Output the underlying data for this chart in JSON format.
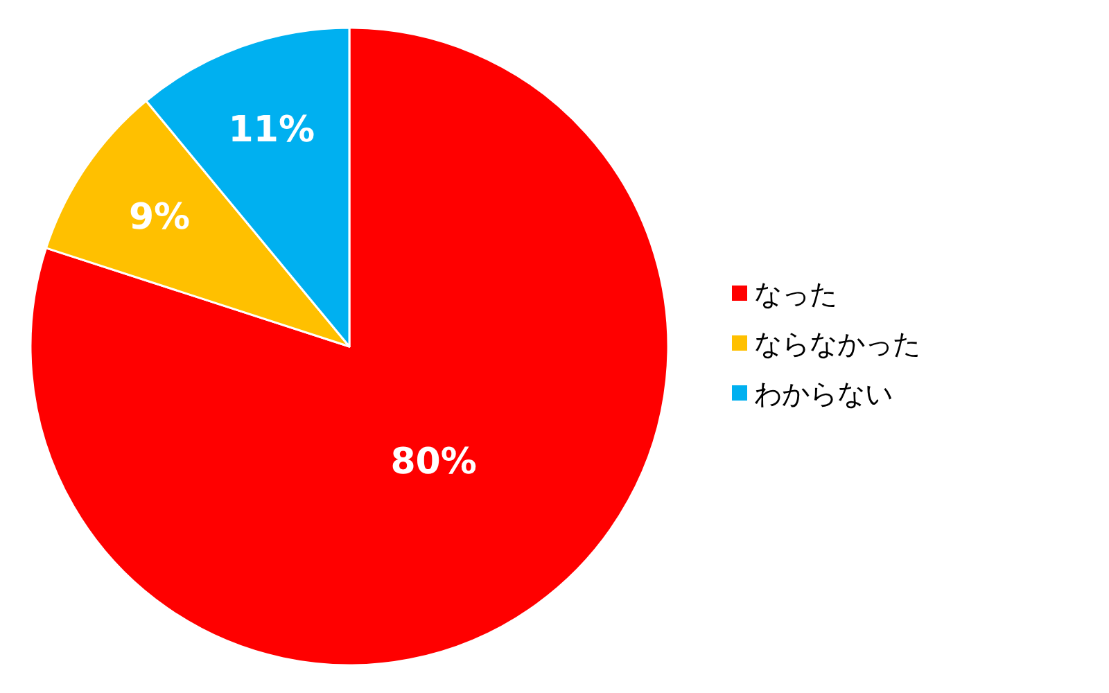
{
  "chart_data": {
    "type": "pie",
    "categories": [
      "なった",
      "ならなかった",
      "わからない"
    ],
    "values": [
      80,
      9,
      11
    ],
    "colors": [
      "#ff0000",
      "#ffc000",
      "#00b0f0"
    ],
    "value_labels": [
      "80%",
      "9%",
      "11%"
    ],
    "legend": "right"
  }
}
